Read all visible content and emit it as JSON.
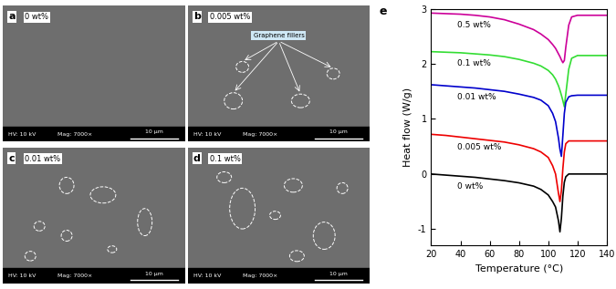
{
  "panels": [
    {
      "letter": "a",
      "label": "0 wt%",
      "info": [
        "HV: 10 kV",
        "Mag: 7000×"
      ],
      "scale_bar": "10 μm"
    },
    {
      "letter": "b",
      "label": "0.005 wt%",
      "info": [
        "HV: 10 kV",
        "Mag: 7000×"
      ],
      "scale_bar": "10 μm",
      "annotation": "Graphene fillers"
    },
    {
      "letter": "c",
      "label": "0.01 wt%",
      "info": [
        "HV: 10 kV",
        "Mag: 7000×"
      ],
      "scale_bar": "10 μm"
    },
    {
      "letter": "d",
      "label": "0.1 wt%",
      "info": [
        "HV: 10 kV",
        "Mag: 7000×"
      ],
      "scale_bar": "10 μm"
    }
  ],
  "chart_data": {
    "type": "line",
    "panel_label": "e",
    "x_label": "Temperature (°C)",
    "y_label": "Heat flow (W/g)",
    "x": [
      20,
      30,
      40,
      50,
      60,
      70,
      80,
      90,
      95,
      100,
      103,
      105,
      107,
      108,
      109,
      110,
      111,
      112,
      114,
      116,
      120,
      130,
      140
    ],
    "series": [
      {
        "name": "0.5 wt%",
        "color": "#cc0099",
        "values": [
          2.92,
          2.91,
          2.9,
          2.88,
          2.85,
          2.8,
          2.72,
          2.62,
          2.54,
          2.44,
          2.35,
          2.28,
          2.18,
          2.13,
          2.07,
          2.02,
          2.06,
          2.3,
          2.7,
          2.85,
          2.88,
          2.88,
          2.88
        ]
      },
      {
        "name": "0.1 wt%",
        "color": "#33dd33",
        "values": [
          2.22,
          2.21,
          2.2,
          2.18,
          2.16,
          2.13,
          2.08,
          2.01,
          1.96,
          1.88,
          1.8,
          1.72,
          1.6,
          1.52,
          1.43,
          1.33,
          1.22,
          1.45,
          1.9,
          2.1,
          2.15,
          2.15,
          2.15
        ]
      },
      {
        "name": "0.01 wt%",
        "color": "#0000cc",
        "values": [
          1.62,
          1.6,
          1.58,
          1.56,
          1.53,
          1.5,
          1.45,
          1.39,
          1.34,
          1.24,
          1.1,
          0.95,
          0.65,
          0.45,
          0.32,
          0.7,
          1.1,
          1.3,
          1.4,
          1.42,
          1.43,
          1.43,
          1.43
        ]
      },
      {
        "name": "0.005 wt%",
        "color": "#ee0000",
        "values": [
          0.72,
          0.7,
          0.67,
          0.64,
          0.61,
          0.58,
          0.53,
          0.46,
          0.4,
          0.3,
          0.15,
          0.0,
          -0.35,
          -0.5,
          -0.3,
          0.1,
          0.4,
          0.55,
          0.6,
          0.6,
          0.6,
          0.6,
          0.6
        ]
      },
      {
        "name": "0 wt%",
        "color": "#000000",
        "values": [
          0.0,
          -0.02,
          -0.04,
          -0.06,
          -0.09,
          -0.12,
          -0.16,
          -0.22,
          -0.28,
          -0.38,
          -0.5,
          -0.6,
          -0.85,
          -1.05,
          -0.8,
          -0.4,
          -0.15,
          -0.05,
          0.0,
          0.0,
          0.0,
          0.0,
          0.0
        ]
      }
    ],
    "xlim": [
      20,
      140
    ],
    "xticks": [
      20,
      40,
      60,
      80,
      100,
      120,
      140
    ],
    "ylim": [
      -1.3,
      3.0
    ],
    "yticks": [
      -1,
      0,
      1,
      2,
      3
    ]
  }
}
